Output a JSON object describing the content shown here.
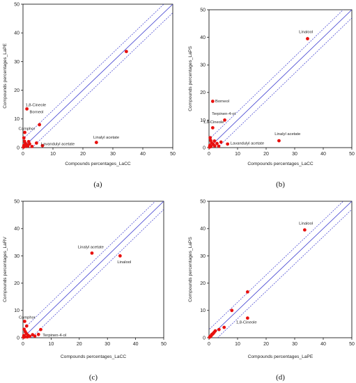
{
  "chart_data": [
    {
      "type": "scatter",
      "panel_label": "(a)",
      "xlabel": "Compounds percentages_LaCC",
      "ylabel": "Compounds percentages_LaPE",
      "xlim": [
        0,
        50
      ],
      "ylim": [
        0,
        50
      ],
      "xticks": [
        0,
        10,
        20,
        30,
        40,
        50
      ],
      "yticks": [
        0,
        10,
        20,
        30,
        40,
        50
      ],
      "points": [
        {
          "x": 34.5,
          "y": 33.5
        },
        {
          "x": 1.3,
          "y": 13.5
        },
        {
          "x": 5.5,
          "y": 8.0
        },
        {
          "x": 0.6,
          "y": 5.3
        },
        {
          "x": 24.5,
          "y": 1.8
        },
        {
          "x": 6.5,
          "y": 0.7
        },
        {
          "x": 0.3,
          "y": 3.4
        },
        {
          "x": 0.5,
          "y": 2.2
        },
        {
          "x": 0.8,
          "y": 1.5
        },
        {
          "x": 1.2,
          "y": 1.0
        },
        {
          "x": 0.3,
          "y": 0.8
        },
        {
          "x": 0.6,
          "y": 0.4
        },
        {
          "x": 1.6,
          "y": 0.5
        },
        {
          "x": 2.2,
          "y": 1.3
        },
        {
          "x": 3.0,
          "y": 0.4
        },
        {
          "x": 4.5,
          "y": 1.6
        },
        {
          "x": 0.2,
          "y": 0.2
        },
        {
          "x": 1.9,
          "y": 2.1
        }
      ],
      "annotations": [
        {
          "text": "1,8-Cineole",
          "x": 0.8,
          "y": 14.4
        },
        {
          "text": "Borneol",
          "x": 2.2,
          "y": 12.0
        },
        {
          "text": "Camphor",
          "x": -1.5,
          "y": 6.2
        },
        {
          "text": "Linalyl acetate",
          "x": 23.5,
          "y": 3.1
        },
        {
          "text": "Lavandulyl acetate",
          "x": 6.0,
          "y": 0.9
        }
      ]
    },
    {
      "type": "scatter",
      "panel_label": "(b)",
      "xlabel": "Compounds percentages_LaCC",
      "ylabel": "Compounds percentages_LaPS",
      "xlim": [
        0,
        50
      ],
      "ylim": [
        0,
        50
      ],
      "xticks": [
        0,
        10,
        20,
        30,
        40,
        50
      ],
      "yticks": [
        0,
        10,
        20,
        30,
        40,
        50
      ],
      "points": [
        {
          "x": 34.5,
          "y": 39.5
        },
        {
          "x": 1.3,
          "y": 16.8
        },
        {
          "x": 5.5,
          "y": 10.0
        },
        {
          "x": 1.3,
          "y": 7.2
        },
        {
          "x": 24.5,
          "y": 2.5
        },
        {
          "x": 6.5,
          "y": 1.3
        },
        {
          "x": 0.4,
          "y": 3.6
        },
        {
          "x": 0.6,
          "y": 2.6
        },
        {
          "x": 0.9,
          "y": 1.7
        },
        {
          "x": 1.5,
          "y": 1.2
        },
        {
          "x": 0.3,
          "y": 0.8
        },
        {
          "x": 0.7,
          "y": 0.4
        },
        {
          "x": 2.0,
          "y": 0.6
        },
        {
          "x": 2.8,
          "y": 1.5
        },
        {
          "x": 3.4,
          "y": 0.5
        },
        {
          "x": 0.2,
          "y": 0.2
        },
        {
          "x": 4.2,
          "y": 2.0
        },
        {
          "x": 1.9,
          "y": 2.4
        }
      ],
      "annotations": [
        {
          "text": "Linalool",
          "x": 31.5,
          "y": 41.5
        },
        {
          "text": "Borneol",
          "x": 2.2,
          "y": 16.4
        },
        {
          "text": "Terpinen-4-ol",
          "x": 1.0,
          "y": 11.9
        },
        {
          "text": "1,8-Cineole",
          "x": -2.0,
          "y": 8.9
        },
        {
          "text": "Linalyl acetate",
          "x": 23.0,
          "y": 4.6
        },
        {
          "text": "Lavandulyl acetate",
          "x": 7.5,
          "y": 1.1
        }
      ]
    },
    {
      "type": "scatter",
      "panel_label": "(c)",
      "xlabel": "Compounds percentages_LaCC",
      "ylabel": "Compounds percentages_LaRV",
      "xlim": [
        0,
        50
      ],
      "ylim": [
        0,
        50
      ],
      "xticks": [
        0,
        10,
        20,
        30,
        40,
        50
      ],
      "yticks": [
        0,
        10,
        20,
        30,
        40,
        50
      ],
      "points": [
        {
          "x": 24.5,
          "y": 31.0
        },
        {
          "x": 34.5,
          "y": 30.0
        },
        {
          "x": 0.6,
          "y": 6.0
        },
        {
          "x": 6.3,
          "y": 3.0
        },
        {
          "x": 5.5,
          "y": 1.2
        },
        {
          "x": 1.3,
          "y": 4.3
        },
        {
          "x": 0.4,
          "y": 3.1
        },
        {
          "x": 0.8,
          "y": 2.2
        },
        {
          "x": 1.2,
          "y": 1.5
        },
        {
          "x": 0.3,
          "y": 0.8
        },
        {
          "x": 1.8,
          "y": 0.9
        },
        {
          "x": 2.4,
          "y": 0.5
        },
        {
          "x": 0.6,
          "y": 0.3
        },
        {
          "x": 3.4,
          "y": 1.1
        },
        {
          "x": 4.2,
          "y": 0.6
        },
        {
          "x": 0.2,
          "y": 0.2
        },
        {
          "x": 1.5,
          "y": 0.3
        }
      ],
      "annotations": [
        {
          "text": "Linalyl acetate",
          "x": 19.5,
          "y": 32.8
        },
        {
          "text": "Linalool",
          "x": 33.5,
          "y": 27.3
        },
        {
          "text": "Camphor",
          "x": -1.5,
          "y": 7.0
        },
        {
          "text": "Terpinen-4-ol",
          "x": 7.0,
          "y": 0.5
        }
      ]
    },
    {
      "type": "scatter",
      "panel_label": "(d)",
      "xlabel": "Compounds percentages_LaPE",
      "ylabel": "Compounds percentages_LaPS",
      "xlim": [
        0,
        50
      ],
      "ylim": [
        0,
        50
      ],
      "xticks": [
        0,
        10,
        20,
        30,
        40,
        50
      ],
      "yticks": [
        0,
        10,
        20,
        30,
        40,
        50
      ],
      "points": [
        {
          "x": 33.5,
          "y": 39.5
        },
        {
          "x": 13.5,
          "y": 16.8
        },
        {
          "x": 8.0,
          "y": 10.0
        },
        {
          "x": 13.5,
          "y": 7.2
        },
        {
          "x": 5.3,
          "y": 3.8
        },
        {
          "x": 3.5,
          "y": 3.0
        },
        {
          "x": 2.2,
          "y": 2.5
        },
        {
          "x": 1.5,
          "y": 1.6
        },
        {
          "x": 1.0,
          "y": 1.2
        },
        {
          "x": 0.8,
          "y": 0.8
        },
        {
          "x": 0.4,
          "y": 0.4
        },
        {
          "x": 0.2,
          "y": 0.2
        },
        {
          "x": 1.8,
          "y": 2.0
        },
        {
          "x": 0.6,
          "y": 0.6
        },
        {
          "x": 1.3,
          "y": 1.4
        }
      ],
      "annotations": [
        {
          "text": "Linalool",
          "x": 31.5,
          "y": 41.5
        },
        {
          "text": "1,8-Cineole",
          "x": 9.5,
          "y": 5.2
        }
      ]
    }
  ]
}
